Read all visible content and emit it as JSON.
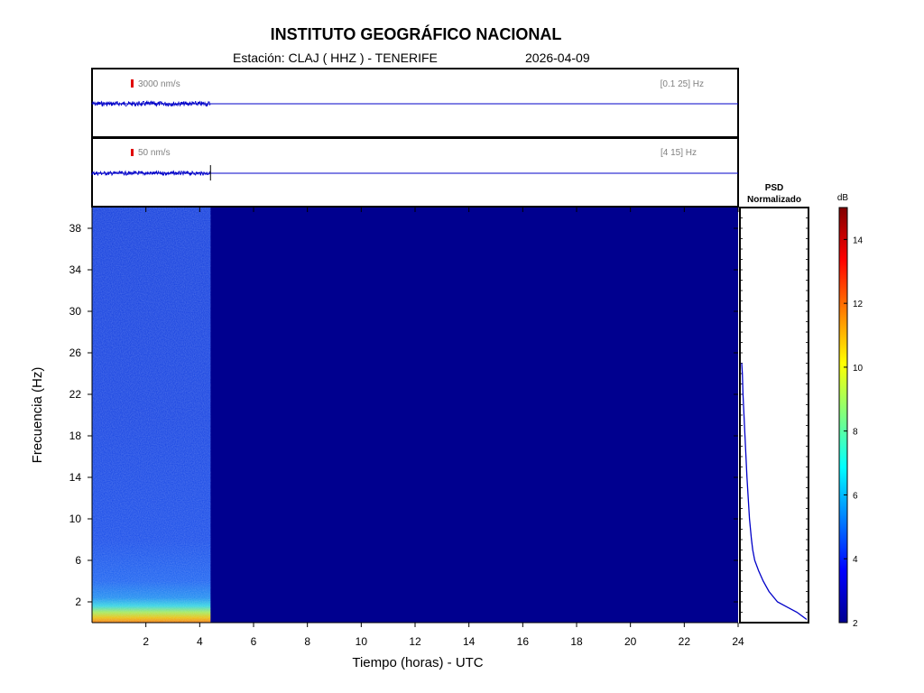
{
  "header": {
    "title": "INSTITUTO GEOGRÁFICO NACIONAL",
    "station": "Estación:  CLAJ ( HHZ ) - TENERIFE",
    "date": "2026-04-09"
  },
  "chart_data": [
    {
      "type": "line",
      "panel": "seismogram-broadband",
      "scale_label": "3000 nm/s",
      "band_label": "[0.1 25] Hz",
      "x_units": "horas UTC",
      "xlim": [
        0,
        24
      ],
      "data_end_hour": 4.4,
      "amplitude_fraction_of_panel": 0.03,
      "scale_bar_color": "#e00000",
      "trace_color": "#0000c8"
    },
    {
      "type": "line",
      "panel": "seismogram-filtered",
      "scale_label": "50 nm/s",
      "band_label": "[4 15] Hz",
      "x_units": "horas UTC",
      "xlim": [
        0,
        24
      ],
      "data_end_hour": 4.4,
      "amplitude_fraction_of_panel": 0.025,
      "trace_color": "#0000c8"
    },
    {
      "type": "heatmap",
      "panel": "spectrogram",
      "xlabel": "Tiempo (horas) - UTC",
      "ylabel": "Frecuencia  (Hz)",
      "xlim": [
        0,
        24
      ],
      "ylim": [
        0,
        40
      ],
      "xticks": [
        2,
        4,
        6,
        8,
        10,
        12,
        14,
        16,
        18,
        20,
        22,
        24
      ],
      "yticks": [
        2,
        6,
        10,
        14,
        18,
        22,
        26,
        30,
        34,
        38
      ],
      "data_end_hour": 4.4,
      "description_levels": {
        "0-1 Hz": 11,
        "1-2 Hz": 7,
        "2-5 Hz": 5.5,
        "5-40 Hz": 4.6,
        "no data": 2
      }
    },
    {
      "type": "line",
      "panel": "psd",
      "title_line1": "PSD",
      "title_line2": "Normalizado",
      "ylim": [
        0,
        40
      ],
      "points": [
        [
          0.3,
          1.0
        ],
        [
          1,
          0.85
        ],
        [
          1.5,
          0.7
        ],
        [
          2,
          0.55
        ],
        [
          3,
          0.42
        ],
        [
          4,
          0.33
        ],
        [
          5,
          0.26
        ],
        [
          6,
          0.2
        ],
        [
          7,
          0.17
        ],
        [
          8,
          0.15
        ],
        [
          10,
          0.12
        ],
        [
          12,
          0.1
        ],
        [
          14,
          0.08
        ],
        [
          16,
          0.065
        ],
        [
          18,
          0.05
        ],
        [
          20,
          0.035
        ],
        [
          22,
          0.02
        ],
        [
          24,
          0.01
        ],
        [
          25,
          0
        ]
      ]
    },
    {
      "type": "heatmap",
      "panel": "colorbar",
      "label": "dB",
      "ylim": [
        2,
        15
      ],
      "ticks": [
        2,
        4,
        6,
        8,
        10,
        12,
        14
      ]
    }
  ]
}
